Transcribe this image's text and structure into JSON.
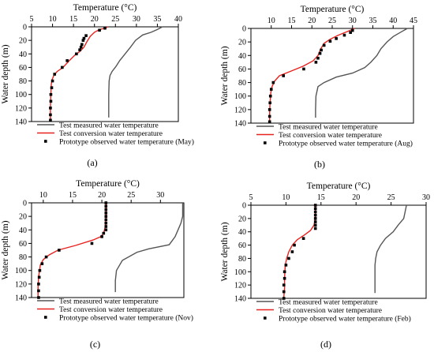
{
  "chart_data": [
    {
      "panel": "a",
      "type": "line",
      "xlabel": "Temperature (°C)",
      "ylabel": "Water depth (m)",
      "xlim": [
        5,
        40
      ],
      "xticks": [
        5,
        10,
        15,
        20,
        25,
        30,
        35,
        40
      ],
      "ylim": [
        0,
        140
      ],
      "yticks": [
        0,
        20,
        40,
        60,
        80,
        100,
        120,
        140
      ],
      "legend": [
        "Test measured water temperature",
        "Test conversion water temperature",
        "Prototype observed water temperature (May)"
      ],
      "panel_label": "(a)",
      "series": [
        {
          "name": "Test measured water temperature",
          "color": "#555555",
          "style": "line",
          "points": [
            [
              36.2,
              0
            ],
            [
              35.0,
              4
            ],
            [
              33.5,
              8
            ],
            [
              31.5,
              12
            ],
            [
              29.8,
              20
            ],
            [
              28.6,
              30
            ],
            [
              27.3,
              40
            ],
            [
              26.0,
              50
            ],
            [
              25.2,
              58
            ],
            [
              24.2,
              66
            ],
            [
              23.7,
              72
            ],
            [
              23.5,
              80
            ],
            [
              23.4,
              100
            ],
            [
              23.4,
              120
            ],
            [
              23.4,
              134
            ]
          ]
        },
        {
          "name": "Test conversion water temperature",
          "color": "#e8231f",
          "style": "line",
          "points": [
            [
              23.2,
              0
            ],
            [
              22.5,
              2
            ],
            [
              21.2,
              4
            ],
            [
              20.0,
              8
            ],
            [
              19.0,
              14
            ],
            [
              18.2,
              22
            ],
            [
              17.5,
              30
            ],
            [
              16.6,
              36
            ],
            [
              15.3,
              42
            ],
            [
              14.0,
              50
            ],
            [
              12.5,
              60
            ],
            [
              11.1,
              66
            ],
            [
              10.3,
              72
            ],
            [
              9.9,
              78
            ],
            [
              9.7,
              85
            ],
            [
              9.6,
              100
            ],
            [
              9.5,
              120
            ],
            [
              9.5,
              138
            ]
          ]
        },
        {
          "name": "Prototype observed water temperature (May)",
          "color": "#000000",
          "style": "marker",
          "points": [
            [
              22.5,
              2
            ],
            [
              21.2,
              5
            ],
            [
              18.0,
              13
            ],
            [
              17.5,
              17
            ],
            [
              17.3,
              20
            ],
            [
              17.0,
              26
            ],
            [
              16.8,
              30
            ],
            [
              16.5,
              34
            ],
            [
              15.7,
              40
            ],
            [
              13.5,
              50
            ],
            [
              12.3,
              60
            ],
            [
              10.5,
              70
            ],
            [
              10.0,
              80
            ],
            [
              9.8,
              90
            ],
            [
              9.6,
              100
            ],
            [
              9.6,
              110
            ],
            [
              9.5,
              120
            ],
            [
              9.5,
              130
            ],
            [
              9.5,
              138
            ]
          ]
        }
      ]
    },
    {
      "panel": "b",
      "type": "line",
      "xlabel": "Temperature (°C)",
      "ylabel": "Water depth (m)",
      "xlim": [
        5,
        45
      ],
      "xticks": [
        10,
        15,
        20,
        25,
        30,
        35,
        40,
        45
      ],
      "ylim": [
        0,
        140
      ],
      "yticks": [
        0,
        20,
        40,
        60,
        80,
        100,
        120,
        140
      ],
      "legend": [
        "Test measured water temperature",
        "Test conversion water temperature",
        "Prototype observed water temperature (Aug)"
      ],
      "panel_label": "(b)",
      "series": [
        {
          "name": "Test measured water temperature",
          "color": "#555555",
          "style": "line",
          "points": [
            [
              43.5,
              0
            ],
            [
              42.0,
              5
            ],
            [
              40.0,
              12
            ],
            [
              38.5,
              20
            ],
            [
              37.0,
              30
            ],
            [
              36.0,
              40
            ],
            [
              34.5,
              50
            ],
            [
              33.0,
              58
            ],
            [
              30.0,
              66
            ],
            [
              26.0,
              72
            ],
            [
              23.0,
              80
            ],
            [
              21.5,
              86
            ],
            [
              21.0,
              100
            ],
            [
              20.9,
              120
            ],
            [
              20.9,
              132
            ]
          ]
        },
        {
          "name": "Test conversion water temperature",
          "color": "#e8231f",
          "style": "line",
          "points": [
            [
              30.5,
              0
            ],
            [
              29.0,
              4
            ],
            [
              26.5,
              10
            ],
            [
              24.5,
              16
            ],
            [
              23.0,
              22
            ],
            [
              22.2,
              30
            ],
            [
              21.5,
              40
            ],
            [
              20.3,
              48
            ],
            [
              17.8,
              56
            ],
            [
              14.5,
              64
            ],
            [
              12.0,
              70
            ],
            [
              10.8,
              78
            ],
            [
              10.2,
              86
            ],
            [
              9.9,
              95
            ],
            [
              9.7,
              110
            ],
            [
              9.6,
              125
            ],
            [
              9.6,
              138
            ]
          ]
        },
        {
          "name": "Prototype observed water temperature (Aug)",
          "color": "#000000",
          "style": "marker",
          "points": [
            [
              30.0,
              3
            ],
            [
              29.5,
              6
            ],
            [
              28.0,
              10
            ],
            [
              26.0,
              15
            ],
            [
              24.5,
              19
            ],
            [
              23.0,
              25
            ],
            [
              22.3,
              32
            ],
            [
              22.0,
              37
            ],
            [
              21.5,
              44
            ],
            [
              21.0,
              50
            ],
            [
              18.0,
              60
            ],
            [
              13.0,
              70
            ],
            [
              10.5,
              80
            ],
            [
              10.0,
              90
            ],
            [
              9.8,
              100
            ],
            [
              9.7,
              110
            ],
            [
              9.6,
              120
            ],
            [
              9.6,
              130
            ],
            [
              9.6,
              138
            ]
          ]
        }
      ]
    },
    {
      "panel": "c",
      "type": "line",
      "xlabel": "Temperature (°C)",
      "ylabel": "Water depth (m)",
      "xlim": [
        8,
        34
      ],
      "xticks": [
        10,
        15,
        20,
        25,
        30
      ],
      "ylim": [
        0,
        140
      ],
      "yticks": [
        0,
        20,
        40,
        60,
        80,
        100,
        120,
        140
      ],
      "legend": [
        "Test measured water temperature",
        "Test conversion water temperature",
        "Prototype observed water temperature (Nov)"
      ],
      "panel_label": "(c)",
      "series": [
        {
          "name": "Test measured water temperature",
          "color": "#555555",
          "style": "line",
          "points": [
            [
              33.8,
              0
            ],
            [
              33.8,
              20
            ],
            [
              33.5,
              30
            ],
            [
              33.0,
              40
            ],
            [
              32.5,
              50
            ],
            [
              31.5,
              62
            ],
            [
              28.0,
              68
            ],
            [
              26.0,
              73
            ],
            [
              23.5,
              85
            ],
            [
              22.5,
              100
            ],
            [
              22.3,
              115
            ],
            [
              22.3,
              132
            ]
          ]
        },
        {
          "name": "Test conversion water temperature",
          "color": "#e8231f",
          "style": "line",
          "points": [
            [
              20.7,
              0
            ],
            [
              20.7,
              20
            ],
            [
              20.6,
              35
            ],
            [
              20.3,
              45
            ],
            [
              19.8,
              50
            ],
            [
              18.5,
              55
            ],
            [
              15.5,
              63
            ],
            [
              12.5,
              70
            ],
            [
              11.0,
              77
            ],
            [
              10.0,
              84
            ],
            [
              9.5,
              92
            ],
            [
              9.2,
              110
            ],
            [
              9.1,
              125
            ],
            [
              9.1,
              138
            ]
          ]
        },
        {
          "name": "Prototype observed water temperature (Nov)",
          "color": "#000000",
          "style": "marker",
          "points": [
            [
              20.7,
              0
            ],
            [
              20.7,
              5
            ],
            [
              20.7,
              10
            ],
            [
              20.7,
              15
            ],
            [
              20.7,
              20
            ],
            [
              20.7,
              25
            ],
            [
              20.7,
              30
            ],
            [
              20.7,
              35
            ],
            [
              20.7,
              40
            ],
            [
              20.3,
              45
            ],
            [
              20.0,
              50
            ],
            [
              18.3,
              60
            ],
            [
              12.7,
              70
            ],
            [
              10.5,
              80
            ],
            [
              9.8,
              90
            ],
            [
              9.4,
              100
            ],
            [
              9.3,
              110
            ],
            [
              9.2,
              120
            ],
            [
              9.2,
              130
            ],
            [
              9.2,
              140
            ]
          ]
        }
      ]
    },
    {
      "panel": "d",
      "type": "line",
      "xlabel": "Temperature (°C)",
      "ylabel": "Water depth (m)",
      "xlim": [
        5,
        30
      ],
      "xticks": [
        5,
        10,
        15,
        20,
        25,
        30
      ],
      "ylim": [
        0,
        140
      ],
      "yticks": [
        0,
        20,
        40,
        60,
        80,
        100,
        120,
        140
      ],
      "legend": [
        "Test measured water temperature",
        "Test conversion water temperature",
        "Prototype observed water temperature (Feb)"
      ],
      "panel_label": "(d)",
      "series": [
        {
          "name": "Test measured water temperature",
          "color": "#555555",
          "style": "line",
          "points": [
            [
              27.2,
              0
            ],
            [
              27.0,
              10
            ],
            [
              26.8,
              20
            ],
            [
              26.0,
              30
            ],
            [
              25.3,
              40
            ],
            [
              24.2,
              50
            ],
            [
              23.5,
              60
            ],
            [
              23.0,
              70
            ],
            [
              22.8,
              80
            ],
            [
              22.7,
              90
            ],
            [
              22.7,
              110
            ],
            [
              22.7,
              132
            ]
          ]
        },
        {
          "name": "Test conversion water temperature",
          "color": "#e8231f",
          "style": "line",
          "points": [
            [
              14.2,
              0
            ],
            [
              14.2,
              20
            ],
            [
              14.0,
              30
            ],
            [
              13.5,
              38
            ],
            [
              12.6,
              45
            ],
            [
              11.6,
              52
            ],
            [
              10.9,
              60
            ],
            [
              10.4,
              70
            ],
            [
              10.1,
              80
            ],
            [
              9.9,
              90
            ],
            [
              9.8,
              110
            ],
            [
              9.8,
              125
            ],
            [
              9.7,
              138
            ]
          ]
        },
        {
          "name": "Prototype observed water temperature (Feb)",
          "color": "#000000",
          "style": "marker",
          "points": [
            [
              14.2,
              0
            ],
            [
              14.2,
              5
            ],
            [
              14.2,
              10
            ],
            [
              14.2,
              15
            ],
            [
              14.2,
              20
            ],
            [
              14.2,
              25
            ],
            [
              14.2,
              30
            ],
            [
              14.2,
              35
            ],
            [
              12.5,
              50
            ],
            [
              11.2,
              60
            ],
            [
              10.9,
              70
            ],
            [
              10.4,
              80
            ],
            [
              10.0,
              90
            ],
            [
              9.8,
              100
            ],
            [
              9.8,
              110
            ],
            [
              9.7,
              120
            ],
            [
              9.7,
              130
            ],
            [
              9.7,
              140
            ]
          ]
        }
      ]
    }
  ]
}
